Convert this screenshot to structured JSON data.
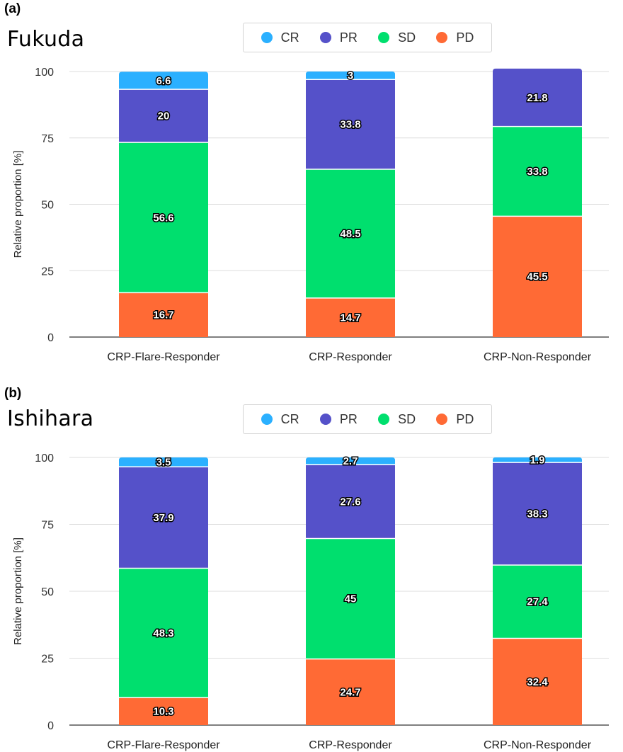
{
  "colors": {
    "CR": "#2bb0ff",
    "PR": "#5551c9",
    "SD": "#00df6e",
    "PD": "#ff6a35"
  },
  "legend": [
    "CR",
    "PR",
    "SD",
    "PD"
  ],
  "chart_data": [
    {
      "type": "bar",
      "stacked": true,
      "panel_label": "(a)",
      "title": "Fukuda",
      "ylabel": "Relative proportion [%]",
      "ylim": [
        0,
        100
      ],
      "yticks": [
        "0",
        "25",
        "50",
        "75",
        "100"
      ],
      "grid": true,
      "legend_position": "top",
      "categories": [
        "CRP-Flare-Responder",
        "CRP-Responder",
        "CRP-Non-Responder"
      ],
      "series": [
        {
          "name": "PD",
          "values": [
            16.7,
            14.7,
            45.5
          ],
          "labels": [
            "16.7",
            "14.7",
            "45.5"
          ]
        },
        {
          "name": "SD",
          "values": [
            56.6,
            48.5,
            33.8
          ],
          "labels": [
            "56.6",
            "48.5",
            "33.8"
          ]
        },
        {
          "name": "PR",
          "values": [
            20,
            33.8,
            21.8
          ],
          "labels": [
            "20",
            "33.8",
            "21.8"
          ]
        },
        {
          "name": "CR",
          "values": [
            6.6,
            3,
            0
          ],
          "labels": [
            "6.6",
            "3",
            ""
          ]
        }
      ]
    },
    {
      "type": "bar",
      "stacked": true,
      "panel_label": "(b)",
      "title": "Ishihara",
      "ylabel": "Relative proportion [%]",
      "ylim": [
        0,
        100
      ],
      "yticks": [
        "0",
        "25",
        "50",
        "75",
        "100"
      ],
      "grid": true,
      "legend_position": "top",
      "categories": [
        "CRP-Flare-Responder",
        "CRP-Responder",
        "CRP-Non-Responder"
      ],
      "series": [
        {
          "name": "PD",
          "values": [
            10.3,
            24.7,
            32.4
          ],
          "labels": [
            "10.3",
            "24.7",
            "32.4"
          ]
        },
        {
          "name": "SD",
          "values": [
            48.3,
            45,
            27.4
          ],
          "labels": [
            "48.3",
            "45",
            "27.4"
          ]
        },
        {
          "name": "PR",
          "values": [
            37.9,
            27.6,
            38.3
          ],
          "labels": [
            "37.9",
            "27.6",
            "38.3"
          ]
        },
        {
          "name": "CR",
          "values": [
            3.5,
            2.7,
            1.9
          ],
          "labels": [
            "3.5",
            "2.7",
            "1.9"
          ]
        }
      ]
    }
  ]
}
